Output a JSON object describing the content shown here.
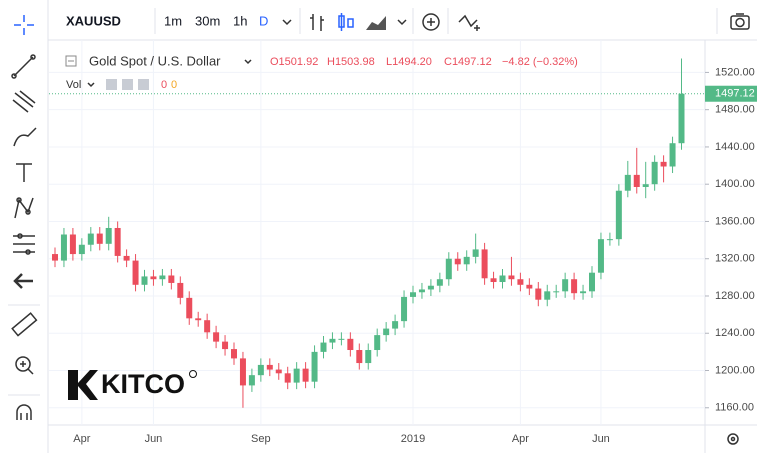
{
  "toolbar": {
    "symbol": "XAUUSD",
    "intervals": [
      "1m",
      "30m",
      "1h",
      "D"
    ]
  },
  "chart_data": {
    "type": "candlestick",
    "title": "Gold Spot / U.S. Dollar",
    "ohlc_legend": [
      "O1501.92",
      "H1503.98",
      "L1494.20",
      "C1497.12",
      "−4.82 (−0.32%)"
    ],
    "volume_label": "Vol",
    "volume_values": [
      "0",
      "0"
    ],
    "watermark": "KITCO",
    "up_color": "#53b987",
    "down_color": "#eb4d5c",
    "categories": [
      null,
      null,
      null,
      "Apr",
      null,
      null,
      null,
      null,
      null,
      null,
      null,
      "Jun",
      null,
      null,
      null,
      null,
      null,
      null,
      null,
      null,
      null,
      null,
      null,
      "Sep",
      null,
      null,
      null,
      null,
      null,
      null,
      null,
      null,
      null,
      null,
      null,
      null,
      null,
      null,
      null,
      null,
      "2019",
      null,
      null,
      null,
      null,
      null,
      null,
      null,
      null,
      null,
      null,
      null,
      "Apr",
      null,
      null,
      null,
      null,
      null,
      null,
      null,
      null,
      "Jun",
      null,
      null,
      null,
      null,
      null,
      null,
      null,
      null,
      null
    ],
    "open": [
      1325,
      1318,
      1346,
      1325,
      1335,
      1347,
      1336,
      1353,
      1323,
      1318,
      1292,
      1301,
      1298,
      1302,
      1294,
      1278,
      1256,
      1254,
      1241,
      1231,
      1223,
      1213,
      1184,
      1195,
      1206,
      1201,
      1197,
      1187,
      1202,
      1188,
      1220,
      1230,
      1234,
      1234,
      1222,
      1208,
      1222,
      1238,
      1245,
      1253,
      1279,
      1284,
      1287,
      1291,
      1298,
      1320,
      1314,
      1322,
      1330,
      1299,
      1295,
      1302,
      1298,
      1292,
      1288,
      1276,
      1285,
      1285,
      1298,
      1283,
      1285,
      1305,
      1341,
      1341,
      1393,
      1410,
      1397,
      1400,
      1424,
      1419,
      1444
    ],
    "high": [
      1332,
      1353,
      1353,
      1342,
      1354,
      1354,
      1365,
      1360,
      1330,
      1325,
      1308,
      1308,
      1309,
      1309,
      1301,
      1285,
      1263,
      1261,
      1248,
      1238,
      1230,
      1220,
      1202,
      1213,
      1213,
      1208,
      1204,
      1209,
      1209,
      1227,
      1237,
      1241,
      1241,
      1241,
      1229,
      1229,
      1245,
      1252,
      1260,
      1286,
      1291,
      1294,
      1298,
      1305,
      1327,
      1327,
      1329,
      1347,
      1337,
      1306,
      1309,
      1322,
      1305,
      1299,
      1295,
      1292,
      1292,
      1305,
      1305,
      1292,
      1312,
      1348,
      1348,
      1400,
      1425,
      1439,
      1424,
      1431,
      1431,
      1451,
      1535
    ],
    "low": [
      1311,
      1311,
      1318,
      1318,
      1328,
      1329,
      1329,
      1316,
      1311,
      1285,
      1285,
      1291,
      1291,
      1287,
      1271,
      1249,
      1247,
      1234,
      1224,
      1216,
      1206,
      1160,
      1177,
      1188,
      1194,
      1190,
      1180,
      1180,
      1181,
      1181,
      1213,
      1223,
      1227,
      1215,
      1201,
      1201,
      1215,
      1231,
      1238,
      1246,
      1272,
      1277,
      1280,
      1284,
      1291,
      1307,
      1307,
      1315,
      1292,
      1288,
      1288,
      1291,
      1285,
      1281,
      1269,
      1269,
      1278,
      1278,
      1276,
      1276,
      1278,
      1298,
      1334,
      1334,
      1386,
      1390,
      1385,
      1393,
      1402,
      1412,
      1437
    ],
    "close": [
      1318,
      1346,
      1325,
      1335,
      1347,
      1336,
      1353,
      1323,
      1318,
      1292,
      1301,
      1298,
      1302,
      1294,
      1278,
      1256,
      1254,
      1241,
      1231,
      1223,
      1213,
      1184,
      1195,
      1206,
      1201,
      1197,
      1187,
      1202,
      1188,
      1220,
      1230,
      1234,
      1234,
      1222,
      1208,
      1222,
      1238,
      1245,
      1253,
      1279,
      1284,
      1287,
      1291,
      1298,
      1320,
      1314,
      1322,
      1330,
      1299,
      1295,
      1302,
      1298,
      1292,
      1288,
      1276,
      1285,
      1285,
      1298,
      1283,
      1285,
      1305,
      1341,
      1341,
      1393,
      1410,
      1397,
      1400,
      1424,
      1419,
      1444,
      1497.12
    ],
    "ylim": [
      1141.5,
      1554.8
    ],
    "yticks": [
      {
        "value": 1160,
        "label": "1160.00"
      },
      {
        "value": 1200,
        "label": "1200.00"
      },
      {
        "value": 1240,
        "label": "1240.00"
      },
      {
        "value": 1280,
        "label": "1280.00"
      },
      {
        "value": 1320,
        "label": "1320.00"
      },
      {
        "value": 1360,
        "label": "1360.00"
      },
      {
        "value": 1400,
        "label": "1400.00"
      },
      {
        "value": 1440,
        "label": "1440.00"
      },
      {
        "value": 1480,
        "label": "1480.00"
      },
      {
        "value": 1520,
        "label": "1520.00"
      }
    ],
    "grid": true
  }
}
